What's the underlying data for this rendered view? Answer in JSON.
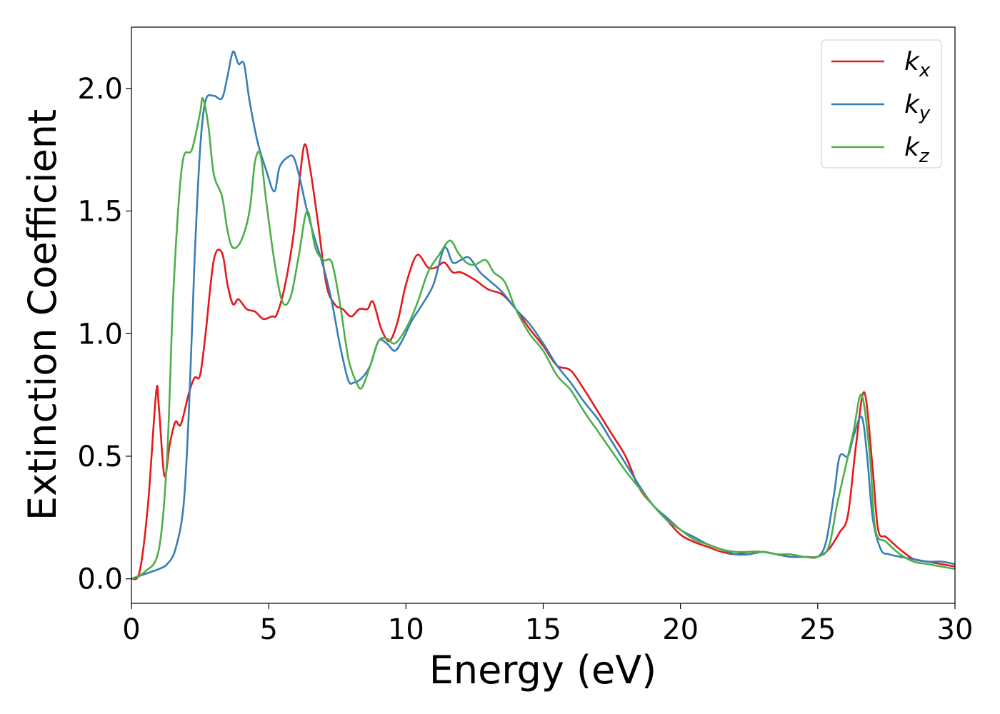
{
  "chart_data": {
    "type": "line",
    "title": "",
    "xlabel": "Energy (eV)",
    "ylabel": "Extinction Coefficient",
    "xlim": [
      0,
      30
    ],
    "ylim": [
      -0.1,
      2.25
    ],
    "xticks": [
      "0",
      "5",
      "10",
      "15",
      "20",
      "25",
      "30"
    ],
    "yticks": [
      "0.0",
      "0.5",
      "1.0",
      "1.5",
      "2.0"
    ],
    "grid": false,
    "legend_position": "top-right",
    "series": [
      {
        "name": "k_x",
        "base": "k",
        "sub": "x",
        "color": "#e41a1c",
        "points": [
          [
            0,
            0
          ],
          [
            0.3,
            0.03
          ],
          [
            0.6,
            0.3
          ],
          [
            0.9,
            0.76
          ],
          [
            1.0,
            0.7
          ],
          [
            1.2,
            0.42
          ],
          [
            1.4,
            0.55
          ],
          [
            1.6,
            0.64
          ],
          [
            1.8,
            0.63
          ],
          [
            2.1,
            0.76
          ],
          [
            2.3,
            0.82
          ],
          [
            2.5,
            0.83
          ],
          [
            2.7,
            1.0
          ],
          [
            3.0,
            1.3
          ],
          [
            3.3,
            1.33
          ],
          [
            3.5,
            1.2
          ],
          [
            3.7,
            1.12
          ],
          [
            3.9,
            1.14
          ],
          [
            4.2,
            1.1
          ],
          [
            4.5,
            1.09
          ],
          [
            4.8,
            1.06
          ],
          [
            5.1,
            1.07
          ],
          [
            5.3,
            1.08
          ],
          [
            5.6,
            1.2
          ],
          [
            5.9,
            1.4
          ],
          [
            6.1,
            1.6
          ],
          [
            6.3,
            1.77
          ],
          [
            6.5,
            1.68
          ],
          [
            6.8,
            1.45
          ],
          [
            7.1,
            1.2
          ],
          [
            7.4,
            1.12
          ],
          [
            7.7,
            1.1
          ],
          [
            8.0,
            1.07
          ],
          [
            8.3,
            1.1
          ],
          [
            8.6,
            1.1
          ],
          [
            8.8,
            1.13
          ],
          [
            9.1,
            1.02
          ],
          [
            9.4,
            0.97
          ],
          [
            9.7,
            1.05
          ],
          [
            10.0,
            1.2
          ],
          [
            10.4,
            1.32
          ],
          [
            10.8,
            1.27
          ],
          [
            11.1,
            1.27
          ],
          [
            11.4,
            1.29
          ],
          [
            11.7,
            1.25
          ],
          [
            12.0,
            1.25
          ],
          [
            12.5,
            1.22
          ],
          [
            13.0,
            1.18
          ],
          [
            13.5,
            1.16
          ],
          [
            14.0,
            1.1
          ],
          [
            14.5,
            1.02
          ],
          [
            15.0,
            0.95
          ],
          [
            15.5,
            0.87
          ],
          [
            16.0,
            0.85
          ],
          [
            16.5,
            0.77
          ],
          [
            17.0,
            0.68
          ],
          [
            17.5,
            0.59
          ],
          [
            18.0,
            0.5
          ],
          [
            18.5,
            0.37
          ],
          [
            19.0,
            0.3
          ],
          [
            19.5,
            0.24
          ],
          [
            20.0,
            0.18
          ],
          [
            20.5,
            0.15
          ],
          [
            21.0,
            0.13
          ],
          [
            21.5,
            0.11
          ],
          [
            22.0,
            0.1
          ],
          [
            22.5,
            0.11
          ],
          [
            23.0,
            0.11
          ],
          [
            23.5,
            0.1
          ],
          [
            24.0,
            0.09
          ],
          [
            24.5,
            0.09
          ],
          [
            25.0,
            0.09
          ],
          [
            25.4,
            0.12
          ],
          [
            25.8,
            0.19
          ],
          [
            26.1,
            0.26
          ],
          [
            26.4,
            0.55
          ],
          [
            26.7,
            0.76
          ],
          [
            27.0,
            0.45
          ],
          [
            27.2,
            0.2
          ],
          [
            27.5,
            0.17
          ],
          [
            28.0,
            0.12
          ],
          [
            28.5,
            0.08
          ],
          [
            29.0,
            0.07
          ],
          [
            29.5,
            0.06
          ],
          [
            30.0,
            0.05
          ]
        ]
      },
      {
        "name": "k_y",
        "base": "k",
        "sub": "y",
        "color": "#377eb8",
        "points": [
          [
            0,
            0
          ],
          [
            0.5,
            0.02
          ],
          [
            1.0,
            0.04
          ],
          [
            1.3,
            0.06
          ],
          [
            1.6,
            0.12
          ],
          [
            1.9,
            0.3
          ],
          [
            2.1,
            0.7
          ],
          [
            2.3,
            1.3
          ],
          [
            2.5,
            1.75
          ],
          [
            2.7,
            1.95
          ],
          [
            3.0,
            1.97
          ],
          [
            3.3,
            1.96
          ],
          [
            3.5,
            2.05
          ],
          [
            3.7,
            2.15
          ],
          [
            3.9,
            2.1
          ],
          [
            4.1,
            2.1
          ],
          [
            4.3,
            1.95
          ],
          [
            4.6,
            1.78
          ],
          [
            4.9,
            1.67
          ],
          [
            5.2,
            1.58
          ],
          [
            5.4,
            1.68
          ],
          [
            5.7,
            1.72
          ],
          [
            5.9,
            1.72
          ],
          [
            6.1,
            1.65
          ],
          [
            6.4,
            1.5
          ],
          [
            6.7,
            1.38
          ],
          [
            7.0,
            1.27
          ],
          [
            7.3,
            1.13
          ],
          [
            7.6,
            0.95
          ],
          [
            7.9,
            0.81
          ],
          [
            8.1,
            0.8
          ],
          [
            8.4,
            0.82
          ],
          [
            8.7,
            0.87
          ],
          [
            9.0,
            0.97
          ],
          [
            9.3,
            0.96
          ],
          [
            9.6,
            0.93
          ],
          [
            9.9,
            0.98
          ],
          [
            10.2,
            1.05
          ],
          [
            10.6,
            1.12
          ],
          [
            11.0,
            1.2
          ],
          [
            11.4,
            1.35
          ],
          [
            11.7,
            1.29
          ],
          [
            12.0,
            1.3
          ],
          [
            12.3,
            1.31
          ],
          [
            12.7,
            1.25
          ],
          [
            13.0,
            1.22
          ],
          [
            13.5,
            1.17
          ],
          [
            14.0,
            1.1
          ],
          [
            14.5,
            1.04
          ],
          [
            15.0,
            0.96
          ],
          [
            15.5,
            0.87
          ],
          [
            16.0,
            0.8
          ],
          [
            16.5,
            0.72
          ],
          [
            17.0,
            0.65
          ],
          [
            17.5,
            0.56
          ],
          [
            18.0,
            0.47
          ],
          [
            18.5,
            0.38
          ],
          [
            19.0,
            0.3
          ],
          [
            19.5,
            0.25
          ],
          [
            20.0,
            0.2
          ],
          [
            20.5,
            0.17
          ],
          [
            21.0,
            0.14
          ],
          [
            21.5,
            0.12
          ],
          [
            22.0,
            0.1
          ],
          [
            22.5,
            0.1
          ],
          [
            23.0,
            0.11
          ],
          [
            23.5,
            0.1
          ],
          [
            24.0,
            0.09
          ],
          [
            24.5,
            0.09
          ],
          [
            25.0,
            0.09
          ],
          [
            25.3,
            0.15
          ],
          [
            25.6,
            0.35
          ],
          [
            25.8,
            0.5
          ],
          [
            26.1,
            0.5
          ],
          [
            26.3,
            0.58
          ],
          [
            26.6,
            0.66
          ],
          [
            26.8,
            0.5
          ],
          [
            27.0,
            0.25
          ],
          [
            27.3,
            0.12
          ],
          [
            27.6,
            0.1
          ],
          [
            28.0,
            0.09
          ],
          [
            28.5,
            0.08
          ],
          [
            29.0,
            0.07
          ],
          [
            29.5,
            0.07
          ],
          [
            30.0,
            0.06
          ]
        ]
      },
      {
        "name": "k_z",
        "base": "k",
        "sub": "z",
        "color": "#4daf4a",
        "points": [
          [
            0,
            0
          ],
          [
            0.5,
            0.03
          ],
          [
            1.0,
            0.12
          ],
          [
            1.3,
            0.5
          ],
          [
            1.5,
            1.1
          ],
          [
            1.7,
            1.5
          ],
          [
            1.9,
            1.72
          ],
          [
            2.2,
            1.75
          ],
          [
            2.5,
            1.9
          ],
          [
            2.6,
            1.96
          ],
          [
            2.8,
            1.85
          ],
          [
            3.0,
            1.65
          ],
          [
            3.3,
            1.56
          ],
          [
            3.5,
            1.42
          ],
          [
            3.7,
            1.35
          ],
          [
            4.0,
            1.38
          ],
          [
            4.3,
            1.5
          ],
          [
            4.5,
            1.7
          ],
          [
            4.7,
            1.73
          ],
          [
            4.9,
            1.55
          ],
          [
            5.2,
            1.3
          ],
          [
            5.5,
            1.13
          ],
          [
            5.8,
            1.15
          ],
          [
            6.1,
            1.32
          ],
          [
            6.4,
            1.5
          ],
          [
            6.7,
            1.35
          ],
          [
            7.0,
            1.3
          ],
          [
            7.3,
            1.29
          ],
          [
            7.6,
            1.12
          ],
          [
            7.9,
            0.9
          ],
          [
            8.2,
            0.8
          ],
          [
            8.4,
            0.78
          ],
          [
            8.7,
            0.87
          ],
          [
            9.0,
            0.97
          ],
          [
            9.3,
            0.98
          ],
          [
            9.6,
            0.96
          ],
          [
            10.0,
            1.02
          ],
          [
            10.4,
            1.12
          ],
          [
            10.8,
            1.25
          ],
          [
            11.2,
            1.32
          ],
          [
            11.6,
            1.38
          ],
          [
            11.9,
            1.33
          ],
          [
            12.2,
            1.29
          ],
          [
            12.5,
            1.28
          ],
          [
            12.9,
            1.3
          ],
          [
            13.2,
            1.25
          ],
          [
            13.6,
            1.21
          ],
          [
            14.0,
            1.1
          ],
          [
            14.5,
            1.0
          ],
          [
            15.0,
            0.93
          ],
          [
            15.5,
            0.83
          ],
          [
            16.0,
            0.77
          ],
          [
            16.5,
            0.68
          ],
          [
            17.0,
            0.6
          ],
          [
            17.5,
            0.52
          ],
          [
            18.0,
            0.44
          ],
          [
            18.5,
            0.37
          ],
          [
            19.0,
            0.3
          ],
          [
            19.5,
            0.24
          ],
          [
            20.0,
            0.2
          ],
          [
            20.5,
            0.16
          ],
          [
            21.0,
            0.14
          ],
          [
            21.5,
            0.12
          ],
          [
            22.0,
            0.11
          ],
          [
            22.5,
            0.11
          ],
          [
            23.0,
            0.11
          ],
          [
            23.5,
            0.1
          ],
          [
            24.0,
            0.1
          ],
          [
            24.5,
            0.09
          ],
          [
            25.0,
            0.09
          ],
          [
            25.4,
            0.13
          ],
          [
            25.7,
            0.3
          ],
          [
            26.0,
            0.45
          ],
          [
            26.3,
            0.6
          ],
          [
            26.6,
            0.75
          ],
          [
            26.9,
            0.5
          ],
          [
            27.1,
            0.2
          ],
          [
            27.5,
            0.15
          ],
          [
            28.0,
            0.1
          ],
          [
            28.5,
            0.07
          ],
          [
            29.0,
            0.06
          ],
          [
            29.5,
            0.05
          ],
          [
            30.0,
            0.04
          ]
        ]
      }
    ]
  }
}
